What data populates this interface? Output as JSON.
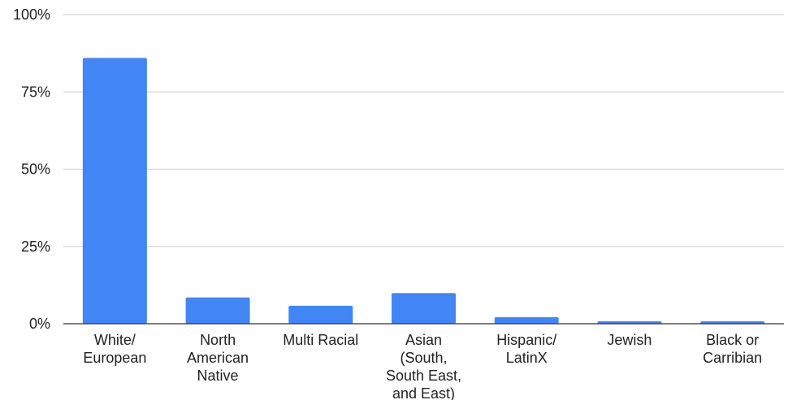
{
  "chart_data": {
    "type": "bar",
    "title": "",
    "xlabel": "",
    "ylabel": "",
    "categories": [
      "White/ European",
      "North American Native",
      "Multi Racial",
      "Asian (South, South East, and East)",
      "Hispanic/ LatinX",
      "Jewish",
      "Black or Carribian"
    ],
    "category_label_lines": [
      [
        "White/",
        "European"
      ],
      [
        "North",
        "American",
        "Native"
      ],
      [
        "Multi Racial"
      ],
      [
        "Asian",
        "(South,",
        "South East,",
        "and East)"
      ],
      [
        "Hispanic/",
        "LatinX"
      ],
      [
        "Jewish"
      ],
      [
        "Black or",
        "Carribian"
      ]
    ],
    "values": [
      86,
      8.5,
      5.8,
      9.9,
      2.1,
      0.8,
      0.8
    ],
    "ylim": [
      0,
      100
    ],
    "y_ticks": [
      0,
      25,
      50,
      75,
      100
    ],
    "y_tick_labels": [
      "0%",
      "25%",
      "50%",
      "75%",
      "100%"
    ],
    "grid": true,
    "legend": "none",
    "bar_color": "#4285f4",
    "grid_color": "#cccccc",
    "axis_color": "#333333"
  }
}
